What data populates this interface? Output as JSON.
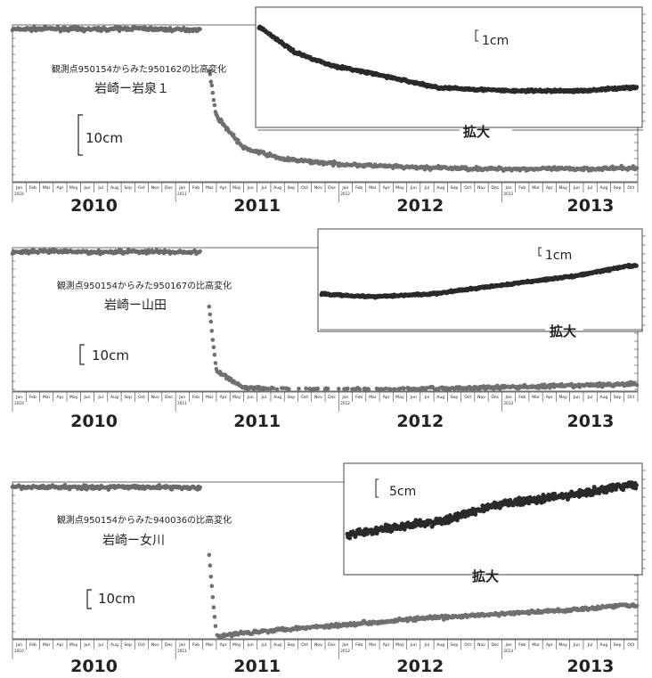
{
  "month_labels": [
    "Jan",
    "Feb",
    "Mar",
    "Apr",
    "May",
    "Jun",
    "Jul",
    "Aug",
    "Sep",
    "Oct",
    "Nov",
    "Dec"
  ],
  "colors": {
    "main": "#707070",
    "inset": "#2a2a2a",
    "pre": "#6a6a6a",
    "frame": "#444444"
  },
  "chart_data": [
    {
      "type": "scatter",
      "title": "観測点950154からみた950162の比高変化",
      "subtitle": "岩崎ー岩泉１",
      "scale_label": "10cm",
      "inset_scale_label": "1cm",
      "inset_label": "拡大",
      "year_labels": [
        "2010",
        "2011",
        "2012",
        "2013"
      ],
      "x": [
        "2010-01",
        "2010-04",
        "2010-07",
        "2010-10",
        "2011-01",
        "2011-03",
        "2011-04",
        "2011-06",
        "2011-09",
        "2012-01",
        "2012-06",
        "2012-12",
        "2013-06",
        "2013-10"
      ],
      "y_cm": [
        0,
        0.2,
        0,
        0.3,
        -0.1,
        0,
        -27,
        -37,
        -40.5,
        -42,
        -43,
        -43.5,
        -43.5,
        -43.3
      ],
      "inset_x": [
        "2011-03",
        "2011-06",
        "2011-09",
        "2012-01",
        "2012-06",
        "2012-12",
        "2013-06",
        "2013-10"
      ],
      "inset_y_cm": [
        0,
        -0.8,
        -1.2,
        -1.5,
        -1.9,
        -2.0,
        -2.0,
        -1.9
      ]
    },
    {
      "type": "scatter",
      "title": "観測点950154からみた950167の比高変化",
      "subtitle": "岩崎ー山田",
      "scale_label": "10cm",
      "inset_scale_label": "1cm",
      "inset_label": "拡大",
      "year_labels": [
        "2010",
        "2011",
        "2012",
        "2013"
      ],
      "x": [
        "2010-01",
        "2010-04",
        "2010-07",
        "2010-10",
        "2011-01",
        "2011-03",
        "2011-04",
        "2011-06",
        "2011-09",
        "2012-01",
        "2012-06",
        "2012-12",
        "2013-06",
        "2013-10"
      ],
      "y_cm": [
        0,
        0.2,
        0,
        0.2,
        0,
        0,
        -35,
        -40,
        -40.6,
        -40.7,
        -40.5,
        -40,
        -39.5,
        -39
      ],
      "inset_x": [
        "2011-09",
        "2012-01",
        "2012-06",
        "2012-12",
        "2013-06",
        "2013-10"
      ],
      "inset_y_cm": [
        0,
        -0.1,
        0,
        0.35,
        0.7,
        1.05
      ]
    },
    {
      "type": "scatter",
      "title": "観測点950154からみた940036の比高変化",
      "subtitle": "岩崎ー女川",
      "scale_label": "10cm",
      "inset_scale_label": "5cm",
      "inset_label": "拡大",
      "year_labels": [
        "2010",
        "2011",
        "2012",
        "2013"
      ],
      "x": [
        "2010-01",
        "2010-04",
        "2010-07",
        "2010-10",
        "2011-01",
        "2011-03",
        "2011-04",
        "2011-06",
        "2011-09",
        "2012-01",
        "2012-06",
        "2012-12",
        "2013-06",
        "2013-10"
      ],
      "y_cm": [
        0,
        0.2,
        0,
        0.2,
        0,
        0,
        -78,
        -76,
        -74,
        -72,
        -69,
        -66.5,
        -64,
        -61.5
      ],
      "inset_x": [
        "2011-09",
        "2012-01",
        "2012-06",
        "2012-09",
        "2012-12",
        "2013-06",
        "2013-10"
      ],
      "inset_y_cm": [
        0,
        2,
        4.5,
        8,
        10,
        12.5,
        15
      ]
    }
  ]
}
